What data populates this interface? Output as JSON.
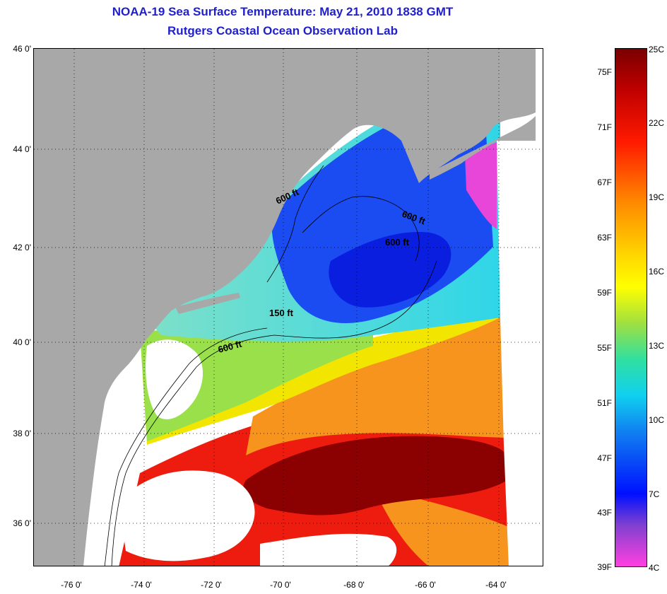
{
  "header": {
    "title": "NOAA-19 Sea Surface Temperature:  May 21, 2010 1838 GMT",
    "subtitle": "Rutgers Coastal Ocean Observation Lab"
  },
  "map": {
    "lat_labels": [
      "46 0'",
      "44 0'",
      "42 0'",
      "40 0'",
      "38 0'",
      "36 0'"
    ],
    "lon_labels": [
      "-76 0'",
      "-74 0'",
      "-72 0'",
      "-70 0'",
      "-68 0'",
      "-66 0'",
      "-64 0'"
    ],
    "contour_labels": [
      "600 ft",
      "600 ft",
      "600 ft",
      "150 ft",
      "600 ft"
    ],
    "colors": {
      "land": "#a8a8a8",
      "cloud": "#ffffff",
      "warm_core": "#8b0000",
      "hot": "#ee1c0f",
      "orange": "#f7941d",
      "yellow": "#f2e600",
      "green": "#9ae04a",
      "cyan": "#2fd6e8",
      "blue": "#1a4cf2",
      "deep_blue": "#0a1ee0",
      "magenta": "#e846d8"
    }
  },
  "colorbar": {
    "fahrenheit_labels": [
      "75F",
      "71F",
      "67F",
      "63F",
      "59F",
      "55F",
      "51F",
      "47F",
      "43F",
      "39F"
    ],
    "celsius_labels": [
      "25C",
      "22C",
      "19C",
      "16C",
      "13C",
      "10C",
      "7C",
      "4C"
    ]
  }
}
